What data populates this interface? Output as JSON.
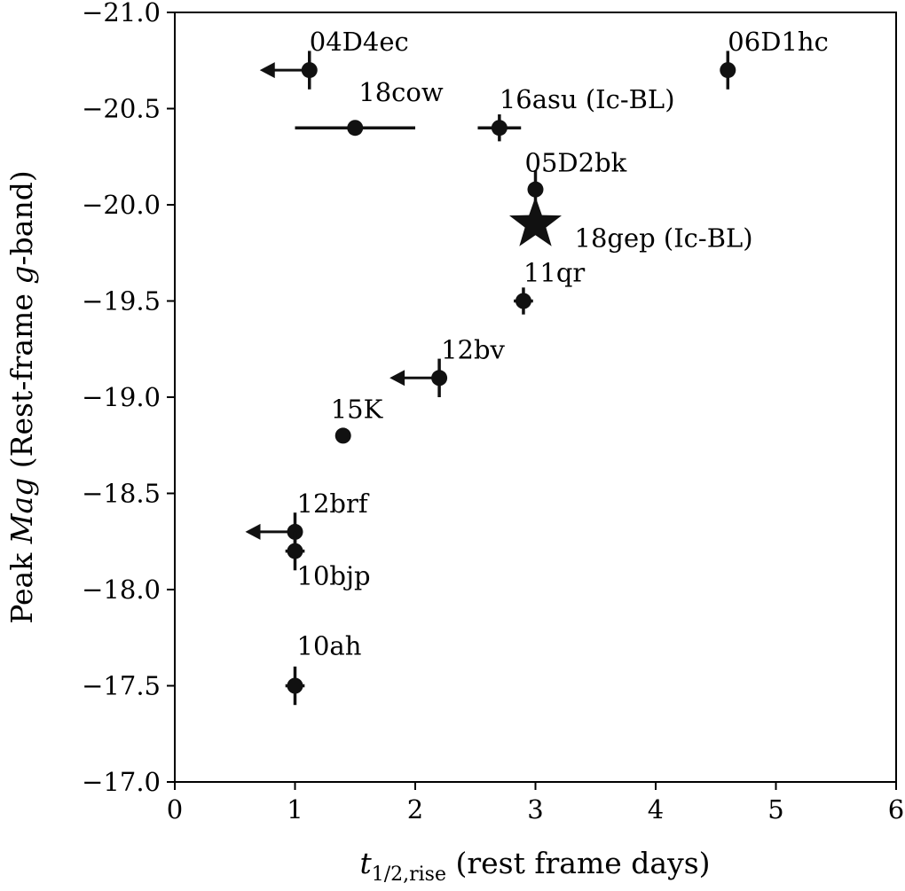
{
  "chart_data": {
    "type": "scatter",
    "title": "",
    "xlabel": "t",
    "xlabel_subscript": "1/2,rise",
    "xlabel_rest": " (rest frame days)",
    "ylabel_pre": "Peak ",
    "ylabel_italic": "Mag",
    "ylabel_mid": " (Rest-frame ",
    "ylabel_italic2": "g",
    "ylabel_post": "-band)",
    "xlim": [
      0,
      6
    ],
    "ylim": [
      -17.0,
      -21.0
    ],
    "y_inverted": true,
    "grid": false,
    "xticks": [
      0,
      1,
      2,
      3,
      4,
      5,
      6
    ],
    "xtick_labels": [
      "0",
      "1",
      "2",
      "3",
      "4",
      "5",
      "6"
    ],
    "yticks": [
      -21.0,
      -20.5,
      -20.0,
      -19.5,
      -19.0,
      -18.5,
      -18.0,
      -17.5,
      -17.0
    ],
    "ytick_labels": [
      "−21.0",
      "−20.5",
      "−20.0",
      "−19.5",
      "−19.0",
      "−18.5",
      "−18.0",
      "−17.5",
      "−17.0"
    ],
    "points": [
      {
        "label": "04D4ec",
        "x": 1.12,
        "y": -20.7,
        "xerr": 0.0,
        "yerr": 0.1,
        "upper_limit_x": true,
        "marker": "circle"
      },
      {
        "label": "06D1hc",
        "x": 4.6,
        "y": -20.7,
        "xerr": 0.0,
        "yerr": 0.1,
        "upper_limit_x": false,
        "marker": "circle"
      },
      {
        "label": "18cow",
        "x": 1.5,
        "y": -20.4,
        "xerr": 0.5,
        "yerr": 0.0,
        "upper_limit_x": false,
        "marker": "circle"
      },
      {
        "label": "16asu (Ic-BL)",
        "x": 2.7,
        "y": -20.4,
        "xerr": 0.18,
        "yerr": 0.07,
        "upper_limit_x": false,
        "marker": "circle"
      },
      {
        "label": "05D2bk",
        "x": 3.0,
        "y": -20.08,
        "xerr": 0.0,
        "yerr": 0.1,
        "upper_limit_x": false,
        "marker": "circle"
      },
      {
        "label": "18gep (Ic-BL)",
        "x": 3.0,
        "y": -19.9,
        "xerr": 0.0,
        "yerr": 0.0,
        "upper_limit_x": false,
        "marker": "star"
      },
      {
        "label": "11qr",
        "x": 2.9,
        "y": -19.5,
        "xerr": 0.08,
        "yerr": 0.07,
        "upper_limit_x": false,
        "marker": "circle"
      },
      {
        "label": "12bv",
        "x": 2.2,
        "y": -19.1,
        "xerr": 0.0,
        "yerr": 0.1,
        "upper_limit_x": true,
        "marker": "circle"
      },
      {
        "label": "15K",
        "x": 1.4,
        "y": -18.8,
        "xerr": 0.0,
        "yerr": 0.0,
        "upper_limit_x": false,
        "marker": "circle"
      },
      {
        "label": "12brf",
        "x": 1.0,
        "y": -18.3,
        "xerr": 0.0,
        "yerr": 0.1,
        "upper_limit_x": true,
        "marker": "circle"
      },
      {
        "label": "10bjp",
        "x": 1.0,
        "y": -18.2,
        "xerr": 0.08,
        "yerr": 0.1,
        "upper_limit_x": false,
        "marker": "circle"
      },
      {
        "label": "10ah",
        "x": 1.0,
        "y": -17.5,
        "xerr": 0.08,
        "yerr": 0.1,
        "upper_limit_x": false,
        "marker": "circle"
      }
    ],
    "colors": {
      "marker": "#111111",
      "axis": "#000000"
    }
  }
}
